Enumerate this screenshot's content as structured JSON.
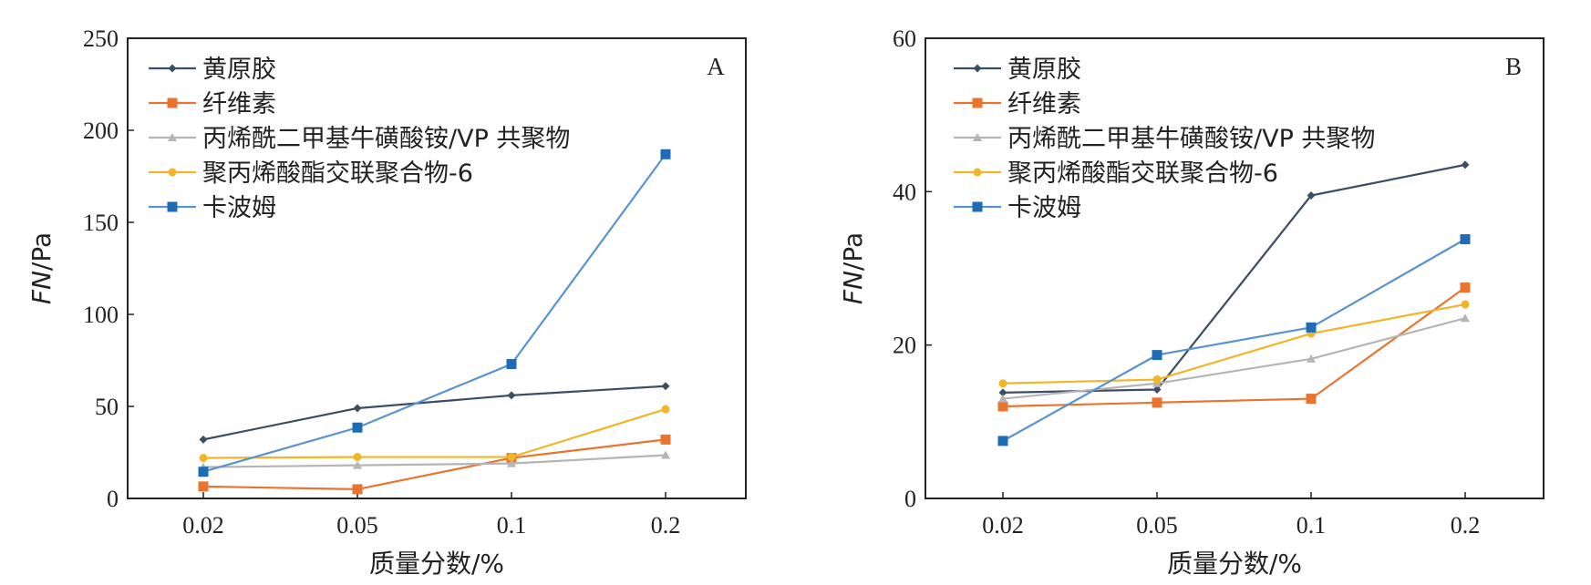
{
  "chart_data": [
    {
      "type": "line",
      "panel_label": "A",
      "xlabel": "质量分数/%",
      "ylabel": "FN/Pa",
      "ylabel_italic": "FN",
      "ylabel_unit": "/Pa",
      "categories": [
        "0.02",
        "0.05",
        "0.1",
        "0.2"
      ],
      "ylim": [
        0,
        250
      ],
      "yticks": [
        0,
        50,
        100,
        150,
        200,
        250
      ],
      "legend_position": "top-left",
      "grid": false,
      "series": [
        {
          "name": "黄原胶",
          "color": "#3d4e62",
          "marker": "diamond",
          "values": [
            32,
            49,
            56,
            61
          ]
        },
        {
          "name": "纤维素",
          "color": "#e8742f",
          "marker": "square",
          "values": [
            6.5,
            5,
            22,
            32
          ]
        },
        {
          "name": "丙烯酰二甲基牛磺酸铵/VP 共聚物",
          "color": "#b5b5b5",
          "marker": "triangle",
          "values": [
            17,
            18,
            19,
            23.5
          ]
        },
        {
          "name": "聚丙烯酸酯交联聚合物-6",
          "color": "#f2b529",
          "marker": "circle",
          "values": [
            22,
            22.5,
            22.5,
            48.5
          ]
        },
        {
          "name": "卡波姆",
          "color": "#5b93cf",
          "marker": "square",
          "marker_color": "#1f6bb5",
          "values": [
            14.5,
            38.5,
            73,
            187
          ]
        }
      ]
    },
    {
      "type": "line",
      "panel_label": "B",
      "xlabel": "质量分数/%",
      "ylabel": "FN/Pa",
      "ylabel_italic": "FN",
      "ylabel_unit": "/Pa",
      "categories": [
        "0.02",
        "0.05",
        "0.1",
        "0.2"
      ],
      "ylim": [
        0,
        60
      ],
      "yticks": [
        0,
        20,
        40,
        60
      ],
      "legend_position": "top-left",
      "grid": false,
      "series": [
        {
          "name": "黄原胶",
          "color": "#3d4e62",
          "marker": "diamond",
          "values": [
            13.8,
            14.2,
            39.5,
            43.5
          ]
        },
        {
          "name": "纤维素",
          "color": "#e8742f",
          "marker": "square",
          "values": [
            12,
            12.5,
            13,
            27.5
          ]
        },
        {
          "name": "丙烯酰二甲基牛磺酸铵/VP 共聚物",
          "color": "#b5b5b5",
          "marker": "triangle",
          "values": [
            13,
            15,
            18.2,
            23.5
          ]
        },
        {
          "name": "聚丙烯酸酯交联聚合物-6",
          "color": "#f2b529",
          "marker": "circle",
          "values": [
            15,
            15.5,
            21.5,
            25.3
          ]
        },
        {
          "name": "卡波姆",
          "color": "#5b93cf",
          "marker": "square",
          "marker_color": "#1f6bb5",
          "values": [
            7.5,
            18.7,
            22.3,
            33.8
          ]
        }
      ]
    }
  ]
}
